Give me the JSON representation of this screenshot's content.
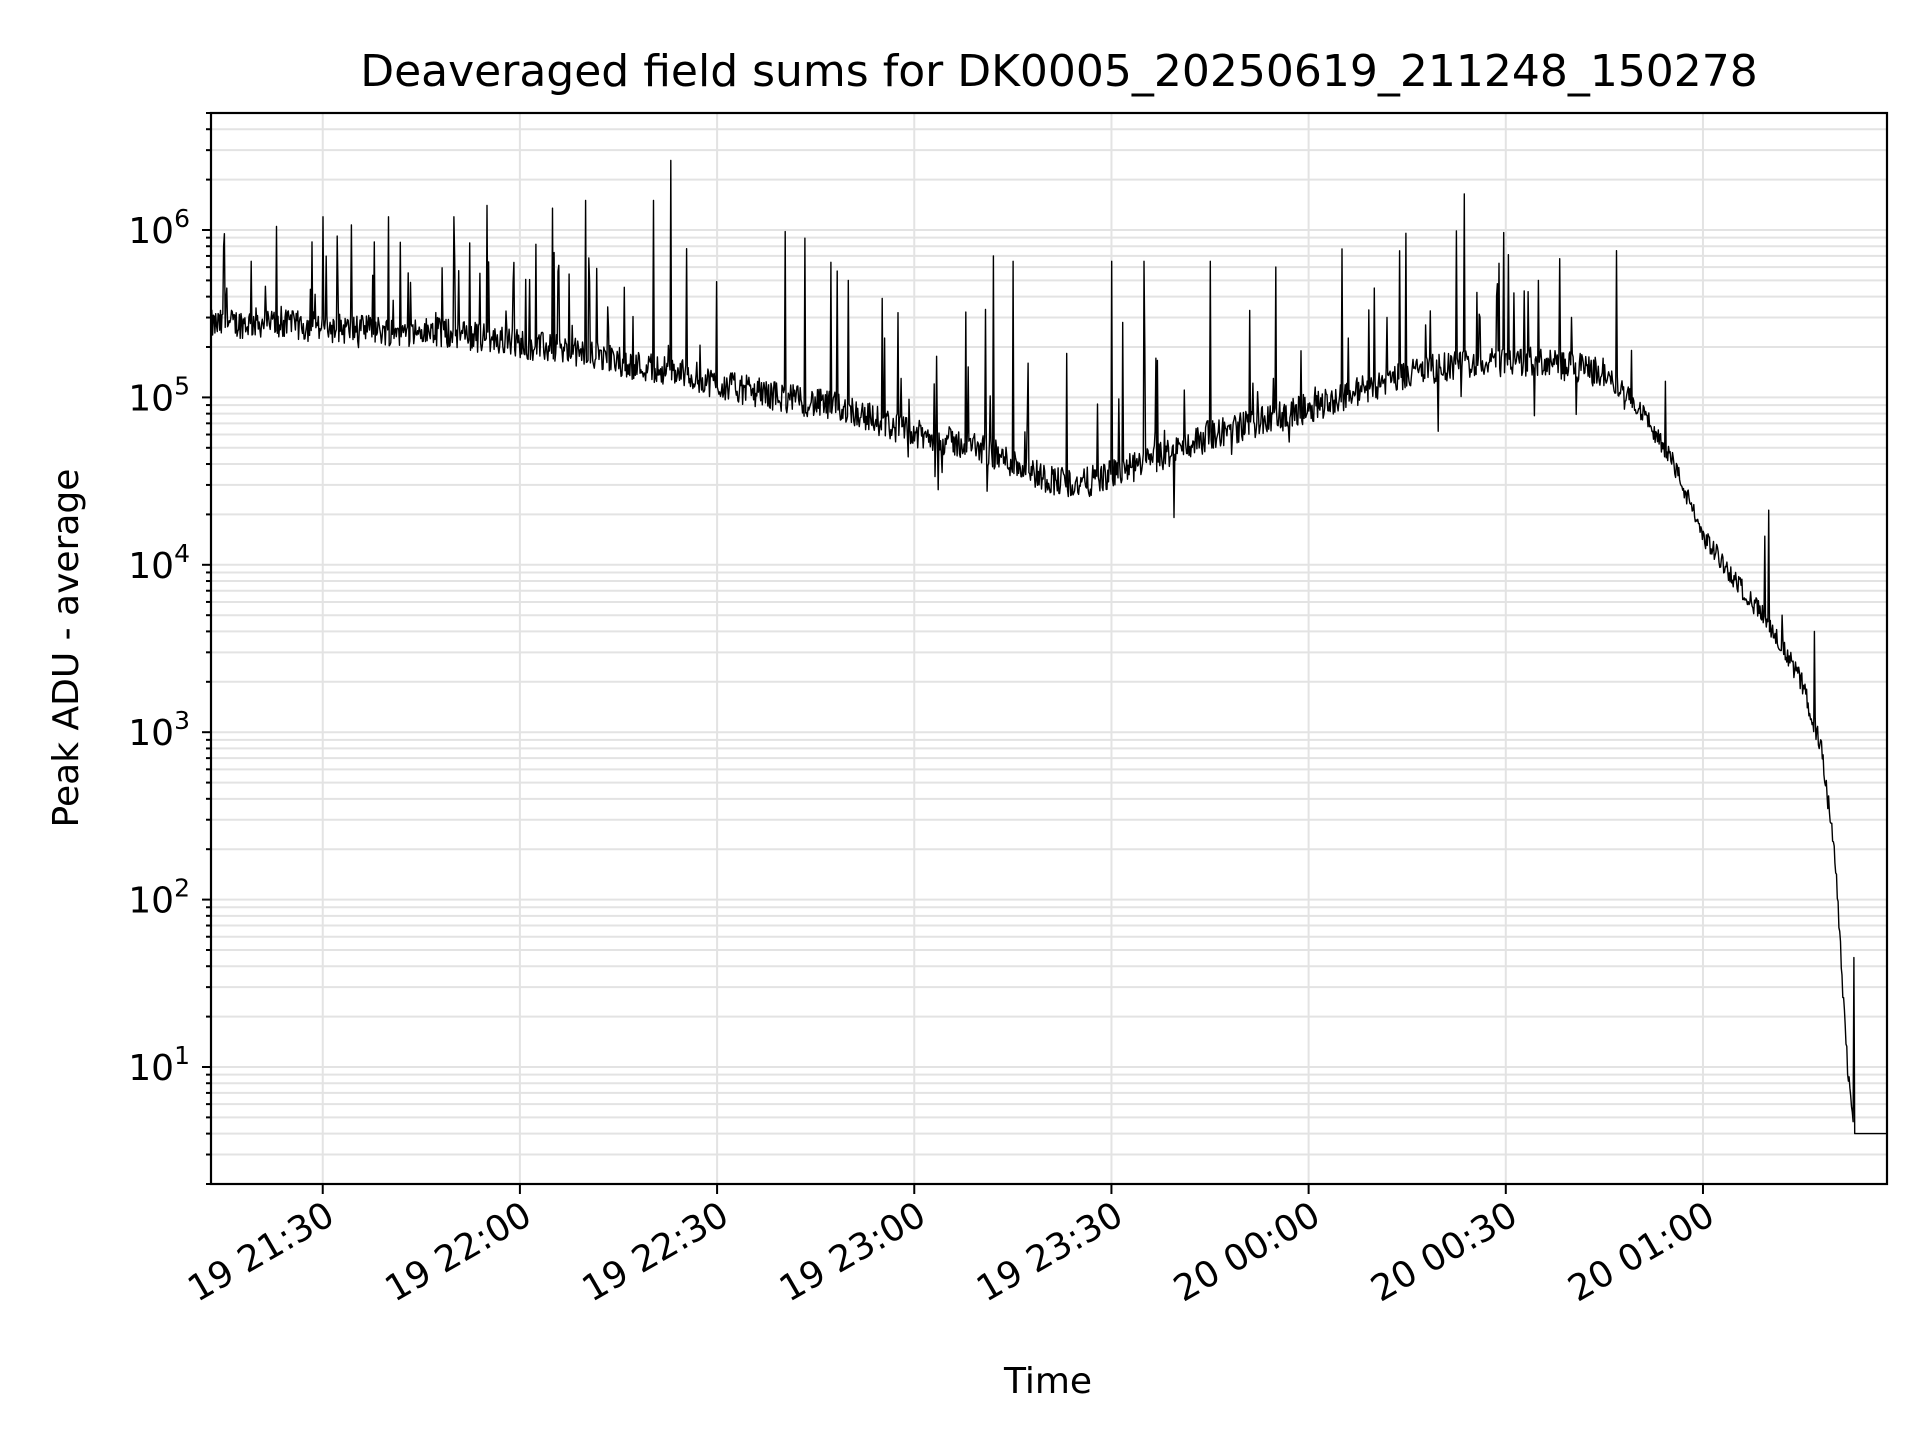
{
  "chart_data": {
    "type": "line",
    "title": "Deaveraged field sums for DK0005_20250619_211248_150278",
    "xlabel": "Time",
    "ylabel": "Peak ADU - average",
    "yscale": "log",
    "ylim": [
      2,
      5000000
    ],
    "xlim": [
      "19 21:13",
      "20 01:28"
    ],
    "grid": true,
    "x_ticks": [
      "19 21:30",
      "19 22:00",
      "19 22:30",
      "19 23:00",
      "19 23:30",
      "20 00:00",
      "20 00:30",
      "20 01:00"
    ],
    "y_ticks": [
      {
        "base": "10",
        "exp": "1",
        "value": 10
      },
      {
        "base": "10",
        "exp": "2",
        "value": 100
      },
      {
        "base": "10",
        "exp": "3",
        "value": 1000
      },
      {
        "base": "10",
        "exp": "4",
        "value": 10000
      },
      {
        "base": "10",
        "exp": "5",
        "value": 100000
      },
      {
        "base": "10",
        "exp": "6",
        "value": 1000000
      }
    ],
    "series": [
      {
        "color": "#000000",
        "x": [
          "19 21:13",
          "19 21:20",
          "19 21:30",
          "19 21:40",
          "19 21:50",
          "19 22:00",
          "19 22:10",
          "19 22:18",
          "19 22:25",
          "19 22:30",
          "19 22:40",
          "19 22:50",
          "19 23:00",
          "19 23:10",
          "19 23:20",
          "19 23:25",
          "19 23:35",
          "19 23:45",
          "19 23:55",
          "20 00:05",
          "20 00:15",
          "20 00:25",
          "20 00:35",
          "20 00:45",
          "20 00:50",
          "20 00:55",
          "20 01:00",
          "20 01:05",
          "20 01:10",
          "20 01:15",
          "20 01:18",
          "20 01:20",
          "20 01:22",
          "20 01:23",
          "20 01:28"
        ],
        "y": [
          270000,
          280000,
          260000,
          250000,
          240000,
          210000,
          180000,
          155000,
          140000,
          120000,
          100000,
          85000,
          60000,
          50000,
          33000,
          30000,
          40000,
          60000,
          75000,
          100000,
          140000,
          160000,
          165000,
          140000,
          90000,
          45000,
          15000,
          8000,
          4500,
          2000,
          800,
          200,
          10,
          4,
          4
        ]
      }
    ],
    "spikes": [
      {
        "x": "19 21:15",
        "y": 950000
      },
      {
        "x": "19 21:23",
        "y": 1050000
      },
      {
        "x": "19 21:30",
        "y": 1200000
      },
      {
        "x": "19 21:40",
        "y": 1200000
      },
      {
        "x": "19 21:50",
        "y": 1200000
      },
      {
        "x": "19 21:55",
        "y": 1400000
      },
      {
        "x": "19 22:05",
        "y": 1350000
      },
      {
        "x": "19 22:10",
        "y": 1500000
      },
      {
        "x": "19 22:23",
        "y": 2600000
      },
      {
        "x": "19 22:50",
        "y": 500000
      },
      {
        "x": "19 23:12",
        "y": 700000
      },
      {
        "x": "19 23:15",
        "y": 650000
      },
      {
        "x": "19 23:30",
        "y": 650000
      },
      {
        "x": "19 23:35",
        "y": 650000
      },
      {
        "x": "19 23:45",
        "y": 650000
      },
      {
        "x": "19 23:55",
        "y": 600000
      },
      {
        "x": "20 00:10",
        "y": 450000
      },
      {
        "x": "20 00:35",
        "y": 500000
      },
      {
        "x": "20 00:40",
        "y": 300000
      },
      {
        "x": "20 00:48",
        "y": 85000
      },
      {
        "x": "20 01:12",
        "y": 5000
      },
      {
        "x": "20 01:17",
        "y": 4000
      },
      {
        "x": "20 01:23",
        "y": 45
      }
    ]
  }
}
